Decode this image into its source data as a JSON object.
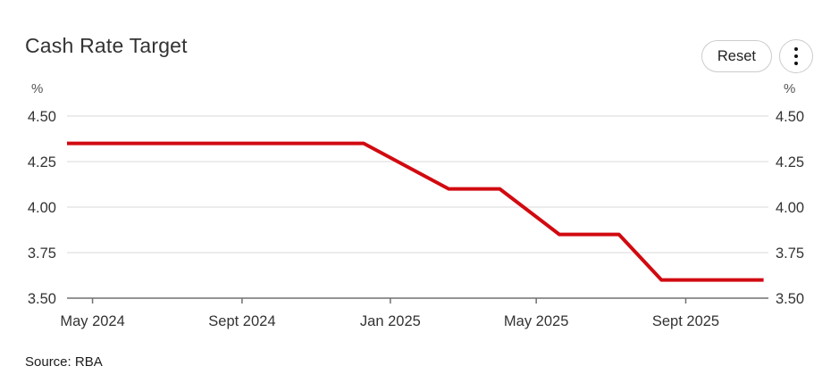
{
  "header": {
    "title": "Cash Rate Target",
    "reset_label": "Reset"
  },
  "source": "Source: RBA",
  "colors": {
    "line": "#d10a10",
    "gridline": "#e6e6e6",
    "axis": "#707070",
    "text": "#333333"
  },
  "chart_data": {
    "type": "line",
    "title": "Cash Rate Target",
    "y_unit": "%",
    "ylim": [
      3.5,
      4.5
    ],
    "grid": true,
    "legend": "none",
    "y_ticks": [
      {
        "value": 4.5,
        "label": "4.50"
      },
      {
        "value": 4.25,
        "label": "4.25"
      },
      {
        "value": 4.0,
        "label": "4.00"
      },
      {
        "value": 3.75,
        "label": "3.75"
      },
      {
        "value": 3.5,
        "label": "3.50"
      }
    ],
    "x_range": [
      "2024-04-10",
      "2025-11-08"
    ],
    "x_ticks": [
      {
        "date": "2024-05-01",
        "label": "May 2024"
      },
      {
        "date": "2024-09-01",
        "label": "Sept 2024"
      },
      {
        "date": "2025-01-01",
        "label": "Jan 2025"
      },
      {
        "date": "2025-05-01",
        "label": "May 2025"
      },
      {
        "date": "2025-09-01",
        "label": "Sept 2025"
      }
    ],
    "series": [
      {
        "name": "Cash Rate Target",
        "color": "#d10a10",
        "points": [
          {
            "date": "2024-04-10",
            "value": 4.35
          },
          {
            "date": "2024-12-10",
            "value": 4.35
          },
          {
            "date": "2025-02-18",
            "value": 4.1
          },
          {
            "date": "2025-04-01",
            "value": 4.1
          },
          {
            "date": "2025-05-20",
            "value": 3.85
          },
          {
            "date": "2025-07-08",
            "value": 3.85
          },
          {
            "date": "2025-08-12",
            "value": 3.6
          },
          {
            "date": "2025-11-04",
            "value": 3.6
          }
        ]
      }
    ]
  }
}
